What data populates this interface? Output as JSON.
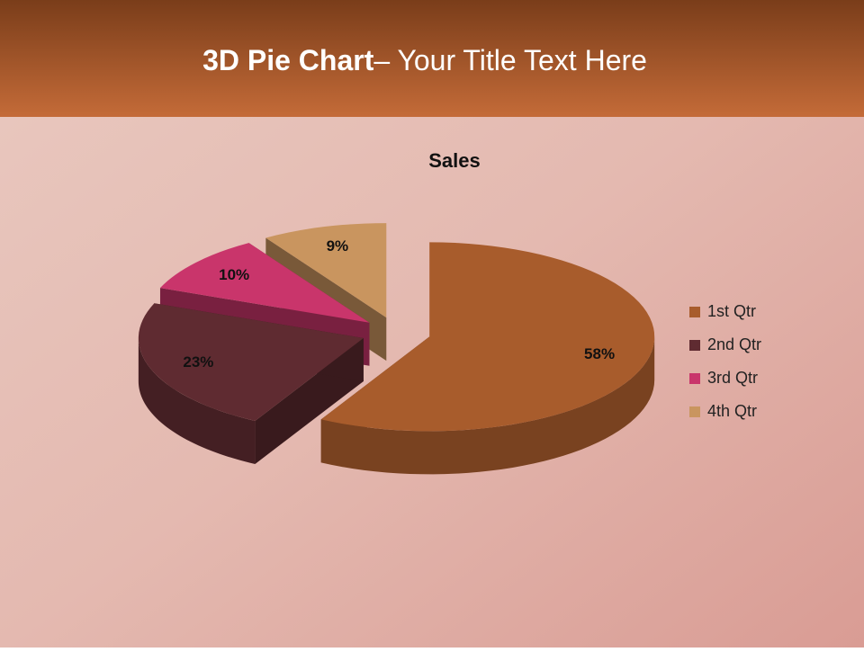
{
  "slide_title": {
    "bold": "3D Pie Chart",
    "regular": "– Your Title Text Here"
  },
  "chart_data": {
    "type": "pie3d",
    "title": "Sales",
    "categories": [
      "1st Qtr",
      "2nd Qtr",
      "3rd Qtr",
      "4th Qtr"
    ],
    "values": [
      58,
      23,
      10,
      9
    ],
    "value_labels": [
      "58%",
      "23%",
      "10%",
      "9%"
    ],
    "colors": [
      "#a85c2c",
      "#5f2b31",
      "#c9356b",
      "#c9955f"
    ],
    "legend": "right"
  }
}
